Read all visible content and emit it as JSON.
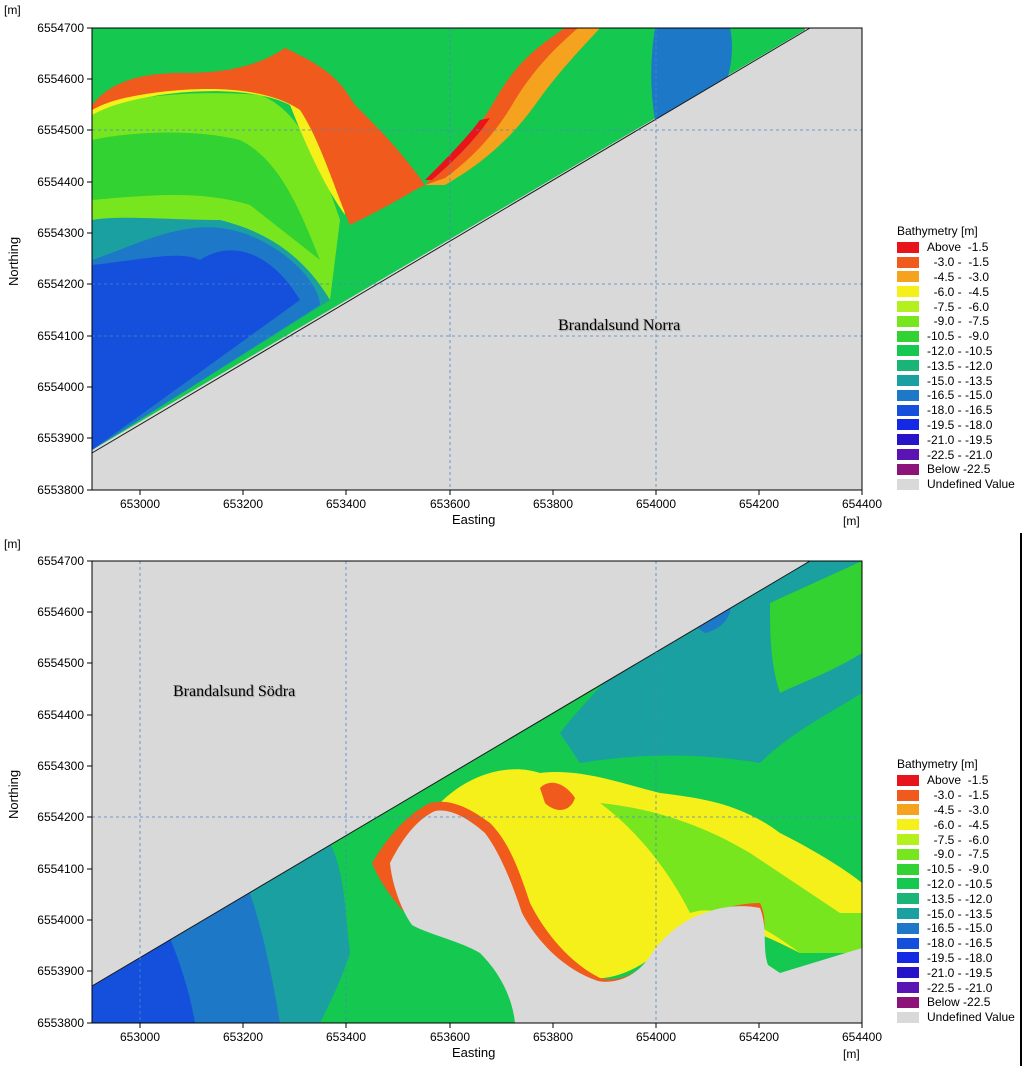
{
  "unit_marker": "[m]",
  "axes": {
    "xlabel": "Easting",
    "ylabel": "Northing",
    "x_unit": "[m]",
    "y_unit": "[m]",
    "x_ticks": [
      "653000",
      "653200",
      "653400",
      "653600",
      "653800",
      "654000",
      "654200",
      "654400"
    ],
    "y_ticks": [
      "6554700",
      "6554600",
      "6554500",
      "6554400",
      "6554300",
      "6554200",
      "6554100",
      "6554000",
      "6553900",
      "6553800"
    ]
  },
  "legend": {
    "title": "Bathymetry [m]",
    "items": [
      {
        "label": "Above  -1.5",
        "color": "#e8141c"
      },
      {
        "label": "  -3.0 -  -1.5",
        "color": "#f05a1c"
      },
      {
        "label": "  -4.5 -  -3.0",
        "color": "#f5a21e"
      },
      {
        "label": "  -6.0 -  -4.5",
        "color": "#f5f01a"
      },
      {
        "label": "  -7.5 -  -6.0",
        "color": "#b4f01e"
      },
      {
        "label": "  -9.0 -  -7.5",
        "color": "#78e61e"
      },
      {
        "label": "-10.5 -  -9.0",
        "color": "#32d232"
      },
      {
        "label": "-12.0 - -10.5",
        "color": "#14c850"
      },
      {
        "label": "-13.5 - -12.0",
        "color": "#1ab478"
      },
      {
        "label": "-15.0 - -13.5",
        "color": "#1aa0a0"
      },
      {
        "label": "-16.5 - -15.0",
        "color": "#1e78c8"
      },
      {
        "label": "-18.0 - -16.5",
        "color": "#1450dc"
      },
      {
        "label": "-19.5 - -18.0",
        "color": "#1428e6"
      },
      {
        "label": "-21.0 - -19.5",
        "color": "#2814c8"
      },
      {
        "label": "-22.5 - -21.0",
        "color": "#5a14b4"
      },
      {
        "label": "Below -22.5",
        "color": "#8c1478"
      },
      {
        "label": "Undefined Value",
        "color": "#d9d9d9"
      }
    ]
  },
  "maps": {
    "north": {
      "label": "Brandalsund Norra"
    },
    "south": {
      "label": "Brandalsund Södra"
    }
  }
}
